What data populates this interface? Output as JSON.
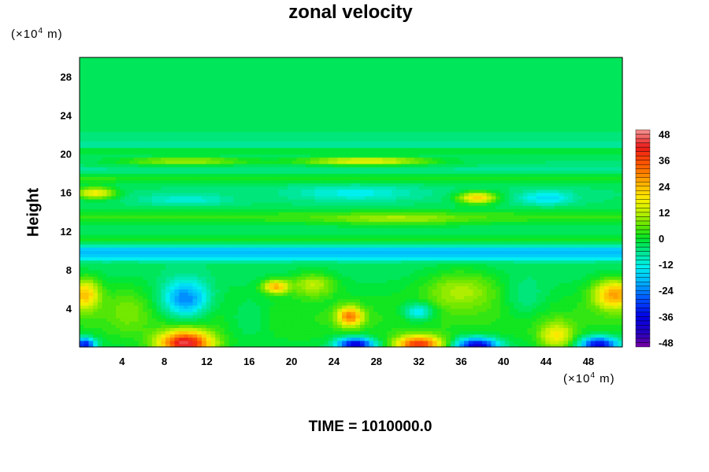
{
  "chart_data": {
    "type": "heatmap",
    "title": "zonal velocity",
    "xlabel": "",
    "ylabel": "Height",
    "x_unit": [
      "(×10",
      "4",
      " m)"
    ],
    "y_unit": [
      "(×10",
      "4",
      " m)"
    ],
    "xlim": [
      0,
      51.2
    ],
    "ylim": [
      0,
      30
    ],
    "x_ticks": [
      4,
      8,
      12,
      16,
      20,
      24,
      28,
      32,
      36,
      40,
      44,
      48
    ],
    "y_ticks": [
      4,
      8,
      12,
      16,
      20,
      24,
      28
    ],
    "colorbar": {
      "range": [
        -50,
        50
      ],
      "ticks": [
        48,
        36,
        24,
        12,
        0,
        -12,
        -24,
        -36,
        -48
      ],
      "levels": 50
    },
    "features": [
      {
        "x": 10,
        "y": 0.4,
        "value": 46,
        "sx": 2.5,
        "sy": 1.3
      },
      {
        "x": 10,
        "y": 5,
        "value": -24,
        "sx": 2.2,
        "sy": 1.9
      },
      {
        "x": 0.5,
        "y": 5.5,
        "value": 24,
        "sx": 1.4,
        "sy": 1.6
      },
      {
        "x": 50.5,
        "y": 5.5,
        "value": 28,
        "sx": 2.0,
        "sy": 1.5
      },
      {
        "x": 18.5,
        "y": 6.3,
        "value": 26,
        "sx": 1.2,
        "sy": 0.7
      },
      {
        "x": 25.5,
        "y": 3.2,
        "value": 30,
        "sx": 1.2,
        "sy": 1.0
      },
      {
        "x": 32,
        "y": 0.3,
        "value": 40,
        "sx": 2.2,
        "sy": 0.9
      },
      {
        "x": 32,
        "y": 3.7,
        "value": -16,
        "sx": 1.4,
        "sy": 0.9
      },
      {
        "x": 37.5,
        "y": 0.2,
        "value": -38,
        "sx": 2.0,
        "sy": 0.8
      },
      {
        "x": 26,
        "y": 0.3,
        "value": -38,
        "sx": 1.8,
        "sy": 0.7
      },
      {
        "x": 49,
        "y": 0.3,
        "value": -36,
        "sx": 1.8,
        "sy": 0.8
      },
      {
        "x": 0.5,
        "y": 0.3,
        "value": -34,
        "sx": 1.0,
        "sy": 0.7
      },
      {
        "x": 45,
        "y": 1.2,
        "value": 18,
        "sx": 1.6,
        "sy": 1.4
      },
      {
        "x": 4.5,
        "y": 4,
        "value": 6,
        "sx": 2.0,
        "sy": 2.5
      },
      {
        "x": 22,
        "y": 6.5,
        "value": 14,
        "sx": 2.0,
        "sy": 1.2
      },
      {
        "x": 36,
        "y": 6,
        "value": 12,
        "sx": 3.5,
        "sy": 2.0
      },
      {
        "x": 42,
        "y": 5,
        "value": -6,
        "sx": 2.0,
        "sy": 2.0
      },
      {
        "x": 16,
        "y": 3,
        "value": -6,
        "sx": 2.0,
        "sy": 2.0
      },
      {
        "x": 1.5,
        "y": 16,
        "value": 22,
        "sx": 1.8,
        "sy": 0.6
      },
      {
        "x": 37.5,
        "y": 15.5,
        "value": 26,
        "sx": 1.8,
        "sy": 0.6
      },
      {
        "x": 27,
        "y": 19.3,
        "value": 22,
        "sx": 6.0,
        "sy": 0.4
      },
      {
        "x": 10,
        "y": 19.3,
        "value": 15,
        "sx": 6.0,
        "sy": 0.4
      },
      {
        "x": 44,
        "y": 15.5,
        "value": -12,
        "sx": 2.5,
        "sy": 0.7
      },
      {
        "x": 10,
        "y": 15.3,
        "value": -8,
        "sx": 4.0,
        "sy": 0.6
      },
      {
        "x": 26,
        "y": 16,
        "value": -9,
        "sx": 6.0,
        "sy": 0.8
      },
      {
        "x": 30,
        "y": 13.3,
        "value": 8,
        "sx": 6.0,
        "sy": 0.6
      }
    ],
    "bands": [
      {
        "y": 10,
        "value": -15,
        "sy": 0.55
      },
      {
        "y": 9.3,
        "value": -9,
        "sy": 0.4
      },
      {
        "y": 11.2,
        "value": 5,
        "sy": 0.5
      },
      {
        "y": 13.5,
        "value": 7,
        "sy": 0.8
      },
      {
        "y": 17.5,
        "value": 6,
        "sy": 0.5
      },
      {
        "y": 18.3,
        "value": -3,
        "sy": 0.35
      },
      {
        "y": 20.4,
        "value": 4,
        "sy": 0.3
      },
      {
        "y": 21,
        "value": -6,
        "sy": 0.25
      },
      {
        "y": 3,
        "value": 6,
        "sy": 3.5
      }
    ],
    "background_value": -4
  },
  "footer": {
    "time": "TIME = 1010000.0"
  }
}
